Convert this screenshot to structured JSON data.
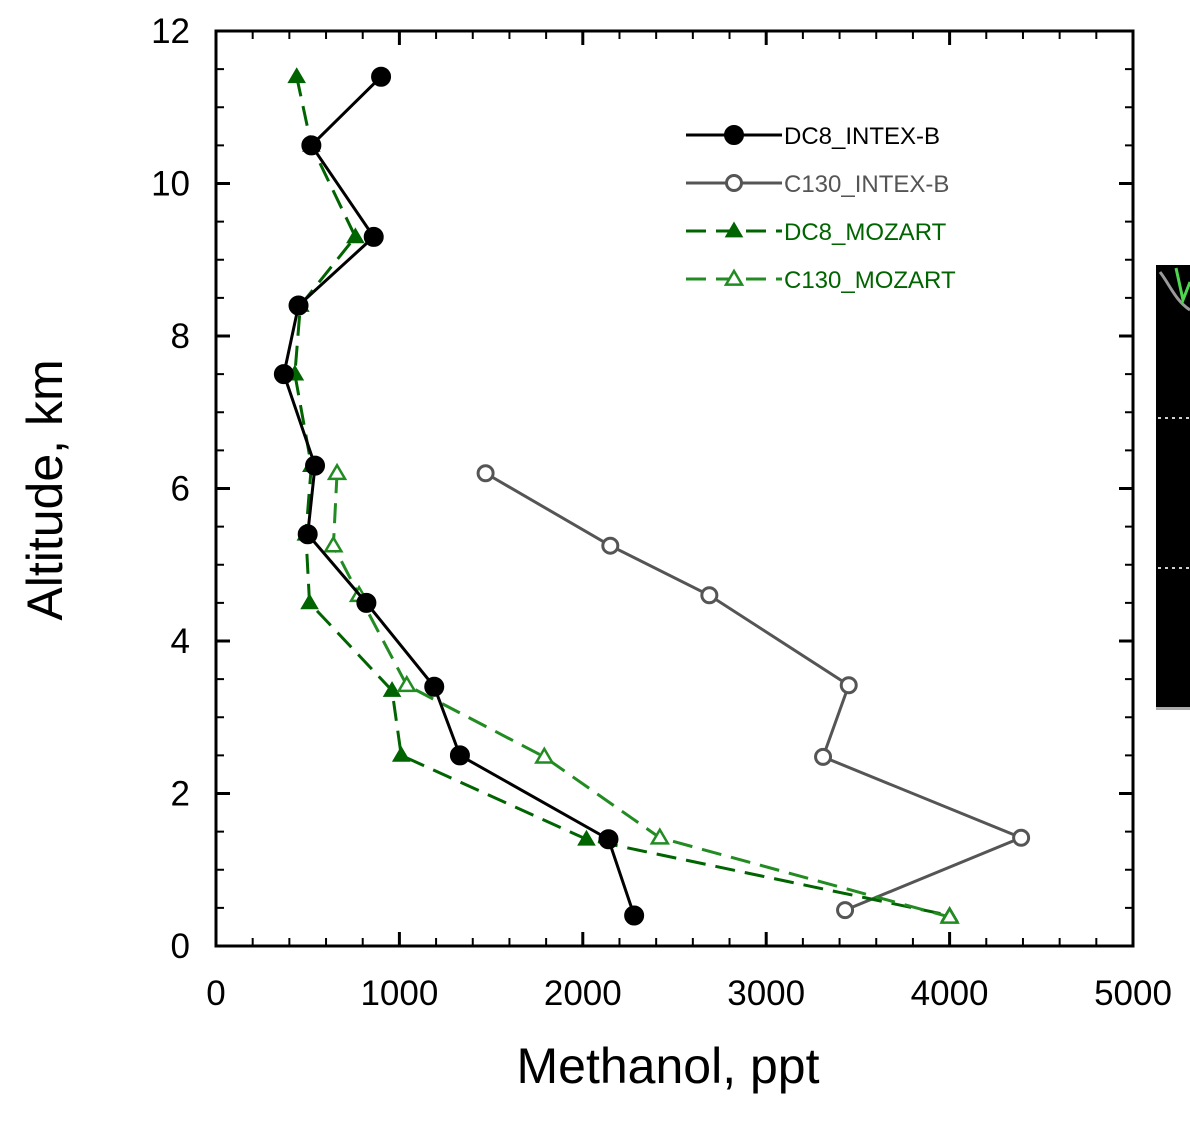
{
  "chart_data": {
    "type": "line",
    "xlabel": "Methanol, ppt",
    "ylabel": "Altitude, km",
    "xlim": [
      0,
      5000
    ],
    "ylim": [
      0,
      12
    ],
    "xticks": [
      0,
      1000,
      2000,
      3000,
      4000,
      5000
    ],
    "yticks": [
      0,
      2,
      4,
      6,
      8,
      10,
      12
    ],
    "grid": false,
    "legend_position": "top-right",
    "series": [
      {
        "name": "DC8_INTEX-B",
        "color": "#000000",
        "style": "solid",
        "marker": "filled-circle",
        "x": [
          900,
          520,
          860,
          450,
          370,
          540,
          500,
          820,
          1190,
          1330,
          2140,
          2280
        ],
        "y": [
          11.4,
          10.5,
          9.3,
          8.4,
          7.5,
          6.3,
          5.4,
          4.5,
          3.4,
          2.5,
          1.4,
          0.4
        ]
      },
      {
        "name": "C130_INTEX-B",
        "color": "#555555",
        "style": "solid",
        "marker": "open-circle",
        "x": [
          1470,
          2150,
          2690,
          3450,
          3310,
          4390,
          3430
        ],
        "y": [
          6.2,
          5.25,
          4.6,
          3.42,
          2.48,
          1.42,
          0.47
        ]
      },
      {
        "name": "DC8_MOZART",
        "color": "#006400",
        "style": "dashed",
        "marker": "filled-triangle",
        "x": [
          440,
          520,
          760,
          460,
          430,
          520,
          490,
          510,
          960,
          1010,
          2020,
          4000
        ],
        "y": [
          11.4,
          10.5,
          9.3,
          8.4,
          7.5,
          6.3,
          5.4,
          4.5,
          3.35,
          2.5,
          1.4,
          0.4
        ]
      },
      {
        "name": "C130_MOZART",
        "color": "#228B22",
        "style": "dashed",
        "marker": "open-triangle",
        "x": [
          660,
          640,
          780,
          1040,
          1790,
          2420,
          4000
        ],
        "y": [
          6.2,
          5.25,
          4.6,
          3.42,
          2.48,
          1.42,
          0.38
        ]
      }
    ]
  },
  "inset": {
    "background": "#000000"
  }
}
